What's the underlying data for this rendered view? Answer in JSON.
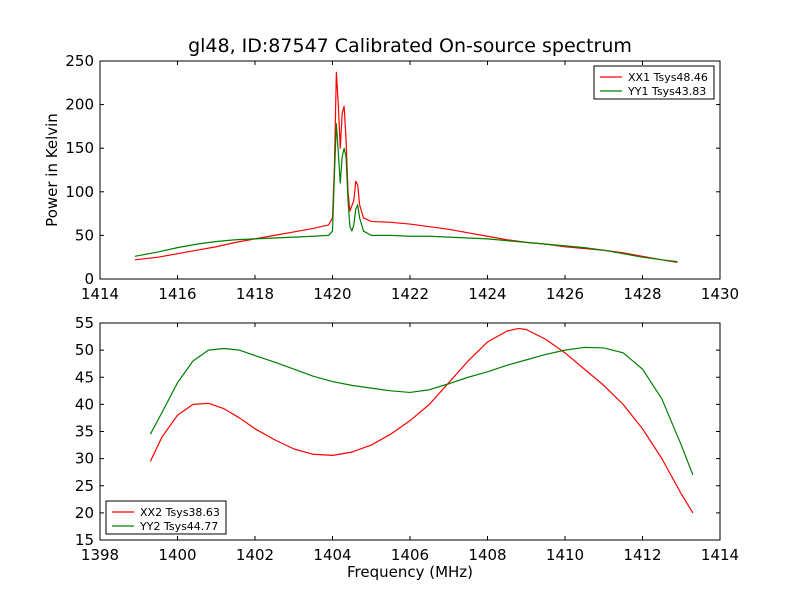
{
  "figure_title": "gl48, ID:87547 Calibrated On-source spectrum",
  "chart_data": [
    {
      "type": "line",
      "title": "gl48, ID:87547 Calibrated On-source spectrum",
      "xlabel": "",
      "ylabel": "Power in Kelvin",
      "xlim": [
        1414,
        1430
      ],
      "ylim": [
        0,
        250
      ],
      "xticks": [
        1414,
        1416,
        1418,
        1420,
        1422,
        1424,
        1426,
        1428,
        1430
      ],
      "yticks": [
        0,
        50,
        100,
        150,
        200,
        250
      ],
      "grid": false,
      "legend_position": "top-right",
      "series": [
        {
          "name": "XX1 Tsys48.46",
          "color": "#ff0000",
          "points": [
            [
              1414.9,
              22
            ],
            [
              1415.5,
              25
            ],
            [
              1416,
              29
            ],
            [
              1416.5,
              33
            ],
            [
              1417,
              37
            ],
            [
              1417.5,
              42
            ],
            [
              1418,
              46
            ],
            [
              1418.5,
              50
            ],
            [
              1419,
              54
            ],
            [
              1419.5,
              58
            ],
            [
              1419.9,
              62
            ],
            [
              1420.0,
              70
            ],
            [
              1420.05,
              130
            ],
            [
              1420.1,
              237
            ],
            [
              1420.15,
              200
            ],
            [
              1420.2,
              150
            ],
            [
              1420.25,
              190
            ],
            [
              1420.3,
              198
            ],
            [
              1420.35,
              160
            ],
            [
              1420.4,
              100
            ],
            [
              1420.45,
              78
            ],
            [
              1420.55,
              90
            ],
            [
              1420.6,
              112
            ],
            [
              1420.65,
              108
            ],
            [
              1420.7,
              85
            ],
            [
              1420.8,
              70
            ],
            [
              1421,
              66
            ],
            [
              1421.5,
              65
            ],
            [
              1422,
              63
            ],
            [
              1422.5,
              60
            ],
            [
              1423,
              57
            ],
            [
              1423.5,
              53
            ],
            [
              1424,
              49
            ],
            [
              1424.5,
              45
            ],
            [
              1425,
              42
            ],
            [
              1425.5,
              40
            ],
            [
              1426,
              37
            ],
            [
              1426.5,
              35
            ],
            [
              1427,
              33
            ],
            [
              1427.5,
              30
            ],
            [
              1428,
              26
            ],
            [
              1428.5,
              22
            ],
            [
              1428.9,
              19
            ]
          ]
        },
        {
          "name": "YY1 Tsys43.83",
          "color": "#008000",
          "points": [
            [
              1414.9,
              26
            ],
            [
              1415.5,
              31
            ],
            [
              1416,
              36
            ],
            [
              1416.5,
              40
            ],
            [
              1417,
              43
            ],
            [
              1417.5,
              45
            ],
            [
              1418,
              46
            ],
            [
              1418.5,
              47
            ],
            [
              1419,
              48
            ],
            [
              1419.5,
              49
            ],
            [
              1419.9,
              50
            ],
            [
              1420.0,
              55
            ],
            [
              1420.05,
              120
            ],
            [
              1420.1,
              178
            ],
            [
              1420.15,
              145
            ],
            [
              1420.2,
              110
            ],
            [
              1420.25,
              140
            ],
            [
              1420.3,
              150
            ],
            [
              1420.35,
              140
            ],
            [
              1420.4,
              90
            ],
            [
              1420.45,
              60
            ],
            [
              1420.5,
              55
            ],
            [
              1420.55,
              62
            ],
            [
              1420.6,
              80
            ],
            [
              1420.65,
              85
            ],
            [
              1420.7,
              70
            ],
            [
              1420.8,
              55
            ],
            [
              1421,
              50
            ],
            [
              1421.5,
              50
            ],
            [
              1422,
              49
            ],
            [
              1422.5,
              49
            ],
            [
              1423,
              48
            ],
            [
              1423.5,
              47
            ],
            [
              1424,
              46
            ],
            [
              1424.5,
              44
            ],
            [
              1425,
              42
            ],
            [
              1425.5,
              40
            ],
            [
              1426,
              38
            ],
            [
              1426.5,
              36
            ],
            [
              1427,
              33
            ],
            [
              1427.5,
              29
            ],
            [
              1428,
              25
            ],
            [
              1428.5,
              22
            ],
            [
              1428.9,
              20
            ]
          ]
        }
      ]
    },
    {
      "type": "line",
      "title": "",
      "xlabel": "Frequency (MHz)",
      "ylabel": "",
      "xlim": [
        1398,
        1414
      ],
      "ylim": [
        15,
        55
      ],
      "xticks": [
        1398,
        1400,
        1402,
        1404,
        1406,
        1408,
        1410,
        1412,
        1414
      ],
      "yticks": [
        15,
        20,
        25,
        30,
        35,
        40,
        45,
        50,
        55
      ],
      "grid": false,
      "legend_position": "bottom-left",
      "series": [
        {
          "name": "XX2 Tsys38.63",
          "color": "#ff0000",
          "points": [
            [
              1399.3,
              29.5
            ],
            [
              1399.6,
              34
            ],
            [
              1400,
              38
            ],
            [
              1400.4,
              40
            ],
            [
              1400.8,
              40.2
            ],
            [
              1401.2,
              39.2
            ],
            [
              1401.6,
              37.5
            ],
            [
              1402,
              35.5
            ],
            [
              1402.5,
              33.5
            ],
            [
              1403,
              31.8
            ],
            [
              1403.5,
              30.8
            ],
            [
              1404,
              30.6
            ],
            [
              1404.5,
              31.2
            ],
            [
              1405,
              32.5
            ],
            [
              1405.5,
              34.5
            ],
            [
              1406,
              37
            ],
            [
              1406.5,
              40
            ],
            [
              1407,
              44
            ],
            [
              1407.5,
              48
            ],
            [
              1408,
              51.5
            ],
            [
              1408.5,
              53.5
            ],
            [
              1408.8,
              54
            ],
            [
              1409,
              53.8
            ],
            [
              1409.5,
              52
            ],
            [
              1410,
              49.5
            ],
            [
              1410.5,
              46.5
            ],
            [
              1411,
              43.5
            ],
            [
              1411.5,
              40
            ],
            [
              1412,
              35.5
            ],
            [
              1412.5,
              30
            ],
            [
              1413,
              23.5
            ],
            [
              1413.3,
              20
            ]
          ]
        },
        {
          "name": "YY2 Tsys44.77",
          "color": "#008000",
          "points": [
            [
              1399.3,
              34.5
            ],
            [
              1399.6,
              38.5
            ],
            [
              1400,
              44
            ],
            [
              1400.4,
              48
            ],
            [
              1400.8,
              50
            ],
            [
              1401.2,
              50.3
            ],
            [
              1401.6,
              50
            ],
            [
              1402,
              49
            ],
            [
              1402.5,
              47.8
            ],
            [
              1403,
              46.5
            ],
            [
              1403.5,
              45.2
            ],
            [
              1404,
              44.2
            ],
            [
              1404.5,
              43.5
            ],
            [
              1405,
              43
            ],
            [
              1405.5,
              42.5
            ],
            [
              1406,
              42.2
            ],
            [
              1406.5,
              42.7
            ],
            [
              1407,
              43.8
            ],
            [
              1407.5,
              45
            ],
            [
              1408,
              46
            ],
            [
              1408.5,
              47.2
            ],
            [
              1409,
              48.2
            ],
            [
              1409.5,
              49.2
            ],
            [
              1410,
              50
            ],
            [
              1410.5,
              50.5
            ],
            [
              1411,
              50.4
            ],
            [
              1411.5,
              49.5
            ],
            [
              1412,
              46.5
            ],
            [
              1412.5,
              41
            ],
            [
              1413,
              32.5
            ],
            [
              1413.3,
              27
            ]
          ]
        }
      ]
    }
  ]
}
